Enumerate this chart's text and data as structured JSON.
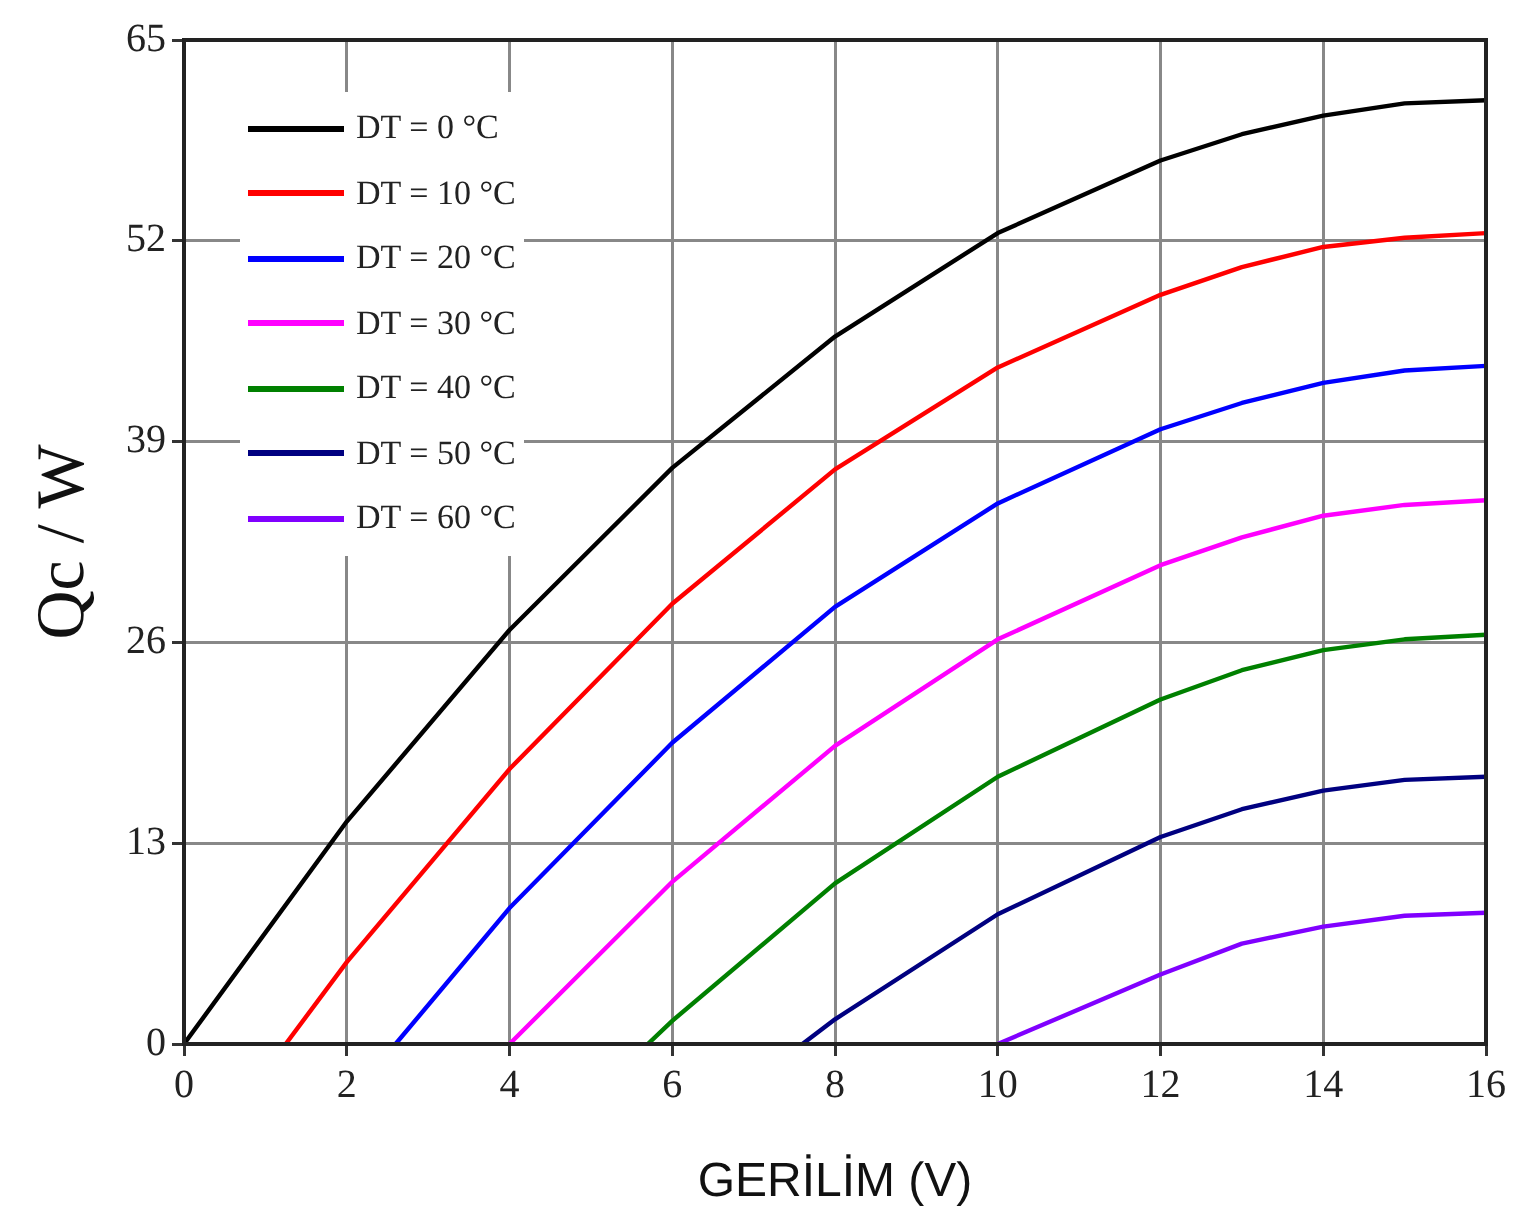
{
  "chart_data": {
    "type": "line",
    "xlabel": "GERİLİM (V)",
    "ylabel": "Qc / W",
    "xlim": [
      0,
      16
    ],
    "xticks": [
      0,
      2,
      4,
      6,
      8,
      10,
      12,
      14,
      16
    ],
    "ylim": [
      0,
      65
    ],
    "yticks": [
      0,
      13,
      26,
      39,
      52,
      65
    ],
    "grid": true,
    "legend": "top left",
    "marker": "none",
    "line_style": "solid",
    "series": [
      {
        "name": "DT = 0 °C",
        "color": "#000000",
        "x": [
          0,
          2,
          4,
          6,
          8,
          10,
          12,
          13,
          14,
          15,
          16
        ],
        "values": [
          0,
          14.4,
          26.8,
          37.3,
          45.8,
          52.5,
          57.2,
          58.9,
          60.1,
          60.9,
          61.1
        ]
      },
      {
        "name": "DT = 10 °C",
        "color": "#ff0000",
        "x": [
          1.25,
          2,
          4,
          6,
          8,
          10,
          12,
          13,
          14,
          15,
          16
        ],
        "values": [
          0,
          5.3,
          17.8,
          28.5,
          37.2,
          43.8,
          48.5,
          50.3,
          51.6,
          52.2,
          52.5
        ]
      },
      {
        "name": "DT = 20 °C",
        "color": "#0000ff",
        "x": [
          2.6,
          4,
          6,
          8,
          10,
          12,
          13,
          14,
          15,
          16
        ],
        "values": [
          0,
          8.8,
          19.5,
          28.3,
          35,
          39.8,
          41.5,
          42.8,
          43.6,
          43.9
        ]
      },
      {
        "name": "DT = 30 °C",
        "color": "#ff00ff",
        "x": [
          4,
          6,
          8,
          10,
          12,
          13,
          14,
          15,
          16
        ],
        "values": [
          0,
          10.5,
          19.3,
          26.2,
          31,
          32.8,
          34.2,
          34.9,
          35.2
        ]
      },
      {
        "name": "DT = 40 °C",
        "color": "#008000",
        "x": [
          5.7,
          6,
          8,
          10,
          12,
          13,
          14,
          15,
          16
        ],
        "values": [
          0,
          1.5,
          10.4,
          17.3,
          22.3,
          24.2,
          25.5,
          26.2,
          26.5
        ]
      },
      {
        "name": "DT = 50 °C",
        "color": "#000080",
        "x": [
          7.6,
          8,
          10,
          12,
          13,
          14,
          15,
          16
        ],
        "values": [
          0,
          1.6,
          8.4,
          13.4,
          15.2,
          16.4,
          17.1,
          17.3
        ]
      },
      {
        "name": "DT = 60 °C",
        "color": "#8000ff",
        "x": [
          10,
          12,
          13,
          14,
          15,
          16
        ],
        "values": [
          0,
          4.5,
          6.5,
          7.6,
          8.3,
          8.5
        ]
      }
    ]
  }
}
